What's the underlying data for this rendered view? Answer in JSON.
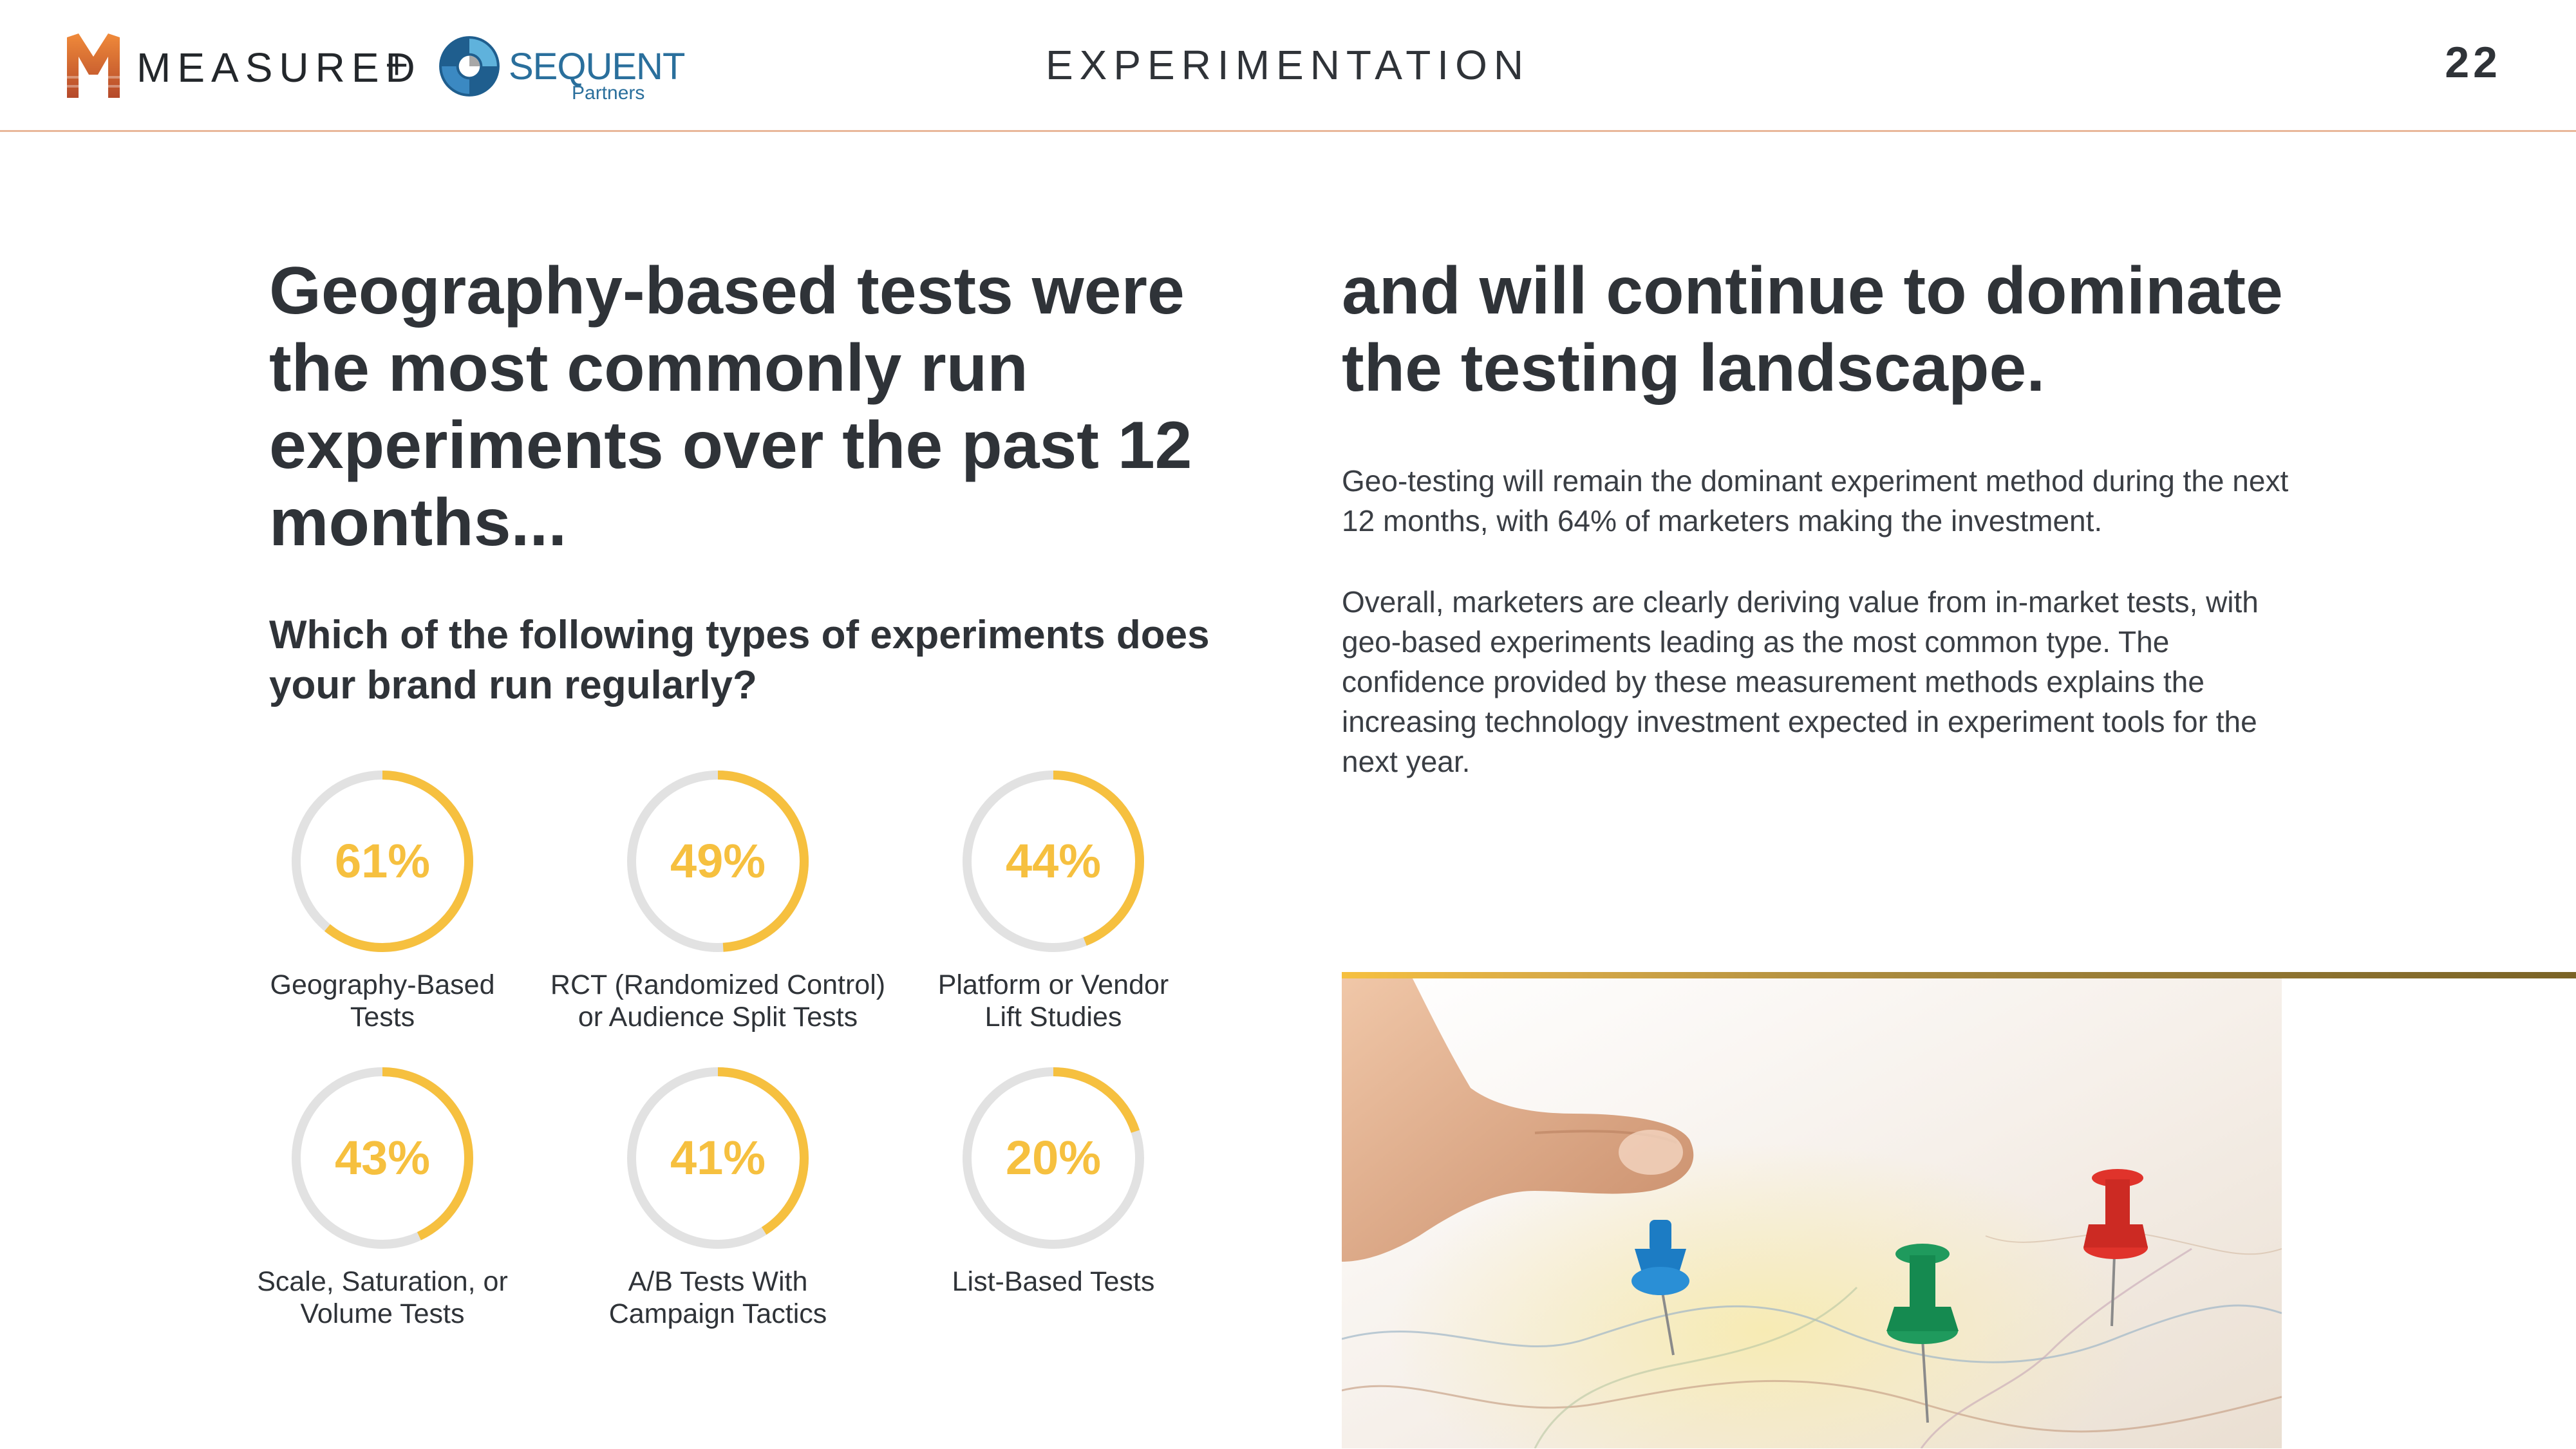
{
  "header": {
    "brand_measured": "MEASURED",
    "brand_plus": "+",
    "brand_sequent": "SEQUENT",
    "brand_partners": "Partners",
    "section_title": "EXPERIMENTATION",
    "page_number": "22"
  },
  "left": {
    "headline": "Geography-based tests were the most commonly run experiments over the past 12 months...",
    "question": "Which of the following types of experiments does your brand run regularly?"
  },
  "right": {
    "headline": "and will continue to dominate the testing landscape.",
    "paragraph1": "Geo-testing will remain the dominant experiment method during the next 12 months, with 64% of marketers making the investment.",
    "paragraph2": "Overall, marketers are clearly deriving value from in-market tests, with geo-based experiments leading as the most common type. The confidence provided by these measurement methods explains the increasing technology investment expected in experiment tools for the next year."
  },
  "colors": {
    "accent": "#f6c03f",
    "track": "#e2e2e2",
    "text": "#2f3338",
    "header_rule": "#e9b79a"
  },
  "chart_data": {
    "type": "donut",
    "items": [
      {
        "label": "Geography-Based Tests",
        "value": 61,
        "display": "61%"
      },
      {
        "label": "RCT (Randomized Control) or Audience Split Tests",
        "value": 49,
        "display": "49%"
      },
      {
        "label": "Platform or Vendor Lift Studies",
        "value": 44,
        "display": "44%"
      },
      {
        "label": "Scale, Saturation, or Volume Tests",
        "value": 43,
        "display": "43%"
      },
      {
        "label": "A/B Tests With Campaign Tactics",
        "value": 41,
        "display": "41%"
      },
      {
        "label": "List-Based Tests",
        "value": 20,
        "display": "20%"
      }
    ]
  },
  "donut_labels": {
    "d0_line1": "Geography-Based",
    "d0_line2": "Tests",
    "d1_line1": "RCT (Randomized Control)",
    "d1_line2": "or Audience Split Tests",
    "d2_line1": "Platform or Vendor",
    "d2_line2": "Lift Studies",
    "d3_line1": "Scale, Saturation, or",
    "d3_line2": "Volume Tests",
    "d4_line1": "A/B Tests With",
    "d4_line2": "Campaign Tactics",
    "d5_line1": "List-Based Tests"
  },
  "photo": {
    "subject": "hand placing push pins on map"
  }
}
